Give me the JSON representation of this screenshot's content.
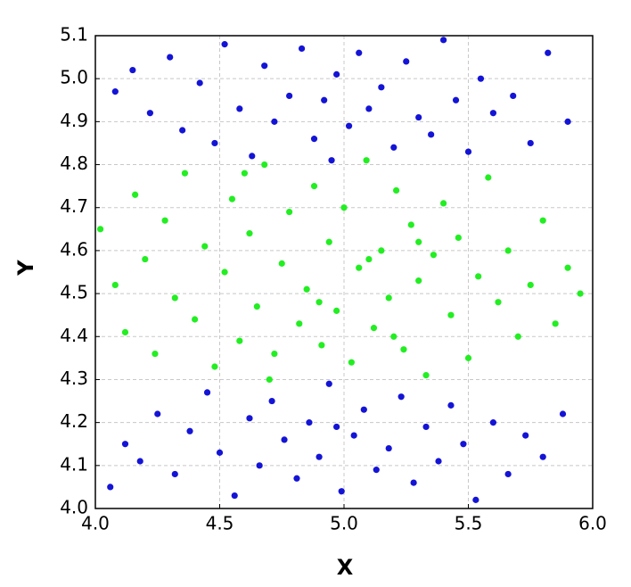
{
  "chart_data": {
    "type": "scatter",
    "x_label": "X",
    "y_label": "Y",
    "xlim": [
      4.0,
      6.0
    ],
    "xticks": [
      {
        "value": 4.0,
        "label": "4.0"
      },
      4.5,
      {
        "value": 5.0,
        "label": "5.0"
      },
      5.5,
      {
        "value": 6.0,
        "label": "6.0"
      }
    ],
    "ylim": [
      4.0,
      5.1
    ],
    "yticks": [
      {
        "value": 4.0,
        "label": "4.0"
      },
      4.1,
      4.2,
      4.3,
      4.4,
      4.5,
      4.6,
      4.7,
      4.8,
      4.9,
      {
        "value": 5.0,
        "label": "5.0"
      },
      5.1
    ],
    "grid": true,
    "series": [
      {
        "color": "#1414d6",
        "x": [
          4.08,
          4.15,
          4.22,
          4.3,
          4.35,
          4.42,
          4.48,
          4.52,
          4.58,
          4.63,
          4.68,
          4.72,
          4.78,
          4.83,
          4.88,
          4.92,
          4.97,
          5.02,
          5.06,
          5.1,
          5.15,
          5.2,
          5.25,
          5.3,
          5.35,
          5.4,
          5.45,
          5.5,
          5.55,
          5.6,
          5.68,
          5.75,
          5.82,
          5.9,
          4.95,
          4.06,
          4.12,
          4.18,
          4.25,
          4.32,
          4.38,
          4.45,
          4.5,
          4.56,
          4.62,
          4.66,
          4.71,
          4.76,
          4.81,
          4.86,
          4.9,
          4.94,
          4.99,
          5.04,
          5.08,
          5.13,
          5.18,
          5.23,
          5.28,
          5.33,
          5.38,
          5.43,
          5.48,
          5.53,
          5.6,
          5.66,
          5.73,
          5.8,
          5.88,
          4.97
        ],
        "values": [
          4.97,
          5.02,
          4.92,
          5.05,
          4.88,
          4.99,
          4.85,
          5.08,
          4.93,
          4.82,
          5.03,
          4.9,
          4.96,
          5.07,
          4.86,
          4.95,
          5.01,
          4.89,
          5.06,
          4.93,
          4.98,
          4.84,
          5.04,
          4.91,
          4.87,
          5.09,
          4.95,
          4.83,
          5.0,
          4.92,
          4.96,
          4.85,
          5.06,
          4.9,
          4.81,
          4.05,
          4.15,
          4.11,
          4.22,
          4.08,
          4.18,
          4.27,
          4.13,
          4.03,
          4.21,
          4.1,
          4.25,
          4.16,
          4.07,
          4.2,
          4.12,
          4.29,
          4.04,
          4.17,
          4.23,
          4.09,
          4.14,
          4.26,
          4.06,
          4.19,
          4.11,
          4.24,
          4.15,
          4.02,
          4.2,
          4.08,
          4.17,
          4.12,
          4.22,
          4.19
        ]
      },
      {
        "color": "#22ee22",
        "x": [
          4.02,
          4.08,
          4.12,
          4.16,
          4.2,
          4.24,
          4.28,
          4.32,
          4.36,
          4.4,
          4.44,
          4.48,
          4.52,
          4.55,
          4.58,
          4.62,
          4.65,
          4.68,
          4.72,
          4.75,
          4.78,
          4.82,
          4.85,
          4.88,
          4.91,
          4.94,
          4.97,
          5.0,
          5.03,
          5.06,
          5.09,
          5.12,
          5.15,
          5.18,
          5.21,
          5.24,
          5.27,
          5.3,
          5.33,
          5.36,
          5.4,
          5.43,
          5.46,
          5.5,
          5.54,
          5.58,
          5.62,
          5.66,
          5.7,
          5.75,
          5.8,
          5.85,
          5.9,
          5.95,
          4.7,
          4.9,
          5.1,
          5.3,
          4.6,
          5.2
        ],
        "values": [
          4.65,
          4.52,
          4.41,
          4.73,
          4.58,
          4.36,
          4.67,
          4.49,
          4.78,
          4.44,
          4.61,
          4.33,
          4.55,
          4.72,
          4.39,
          4.64,
          4.47,
          4.8,
          4.36,
          4.57,
          4.69,
          4.43,
          4.51,
          4.75,
          4.38,
          4.62,
          4.46,
          4.7,
          4.34,
          4.56,
          4.81,
          4.42,
          4.6,
          4.49,
          4.74,
          4.37,
          4.66,
          4.53,
          4.31,
          4.59,
          4.71,
          4.45,
          4.63,
          4.35,
          4.54,
          4.77,
          4.48,
          4.6,
          4.4,
          4.52,
          4.67,
          4.43,
          4.56,
          4.5,
          4.3,
          4.48,
          4.58,
          4.62,
          4.78,
          4.4
        ]
      }
    ]
  }
}
